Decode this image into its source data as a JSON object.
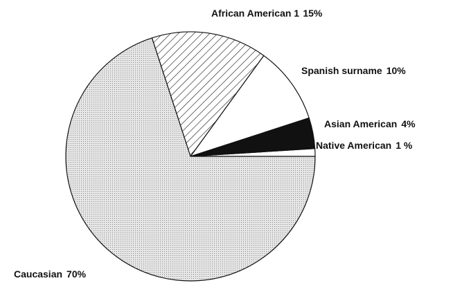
{
  "chart_data": {
    "type": "pie",
    "categories": [
      "Native American",
      "Asian American",
      "Spanish surname",
      "African American 1",
      "Caucasian"
    ],
    "values": [
      1,
      4,
      10,
      15,
      70
    ],
    "value_labels": [
      "1 %",
      "4%",
      "10%",
      "15%",
      "70%"
    ],
    "colors": [
      "#ffffff",
      "#111111",
      "#ffffff",
      "#ffffff",
      "#d6d6d6"
    ],
    "patterns": [
      "solid",
      "solid",
      "solid",
      "hatch",
      "dots"
    ]
  }
}
